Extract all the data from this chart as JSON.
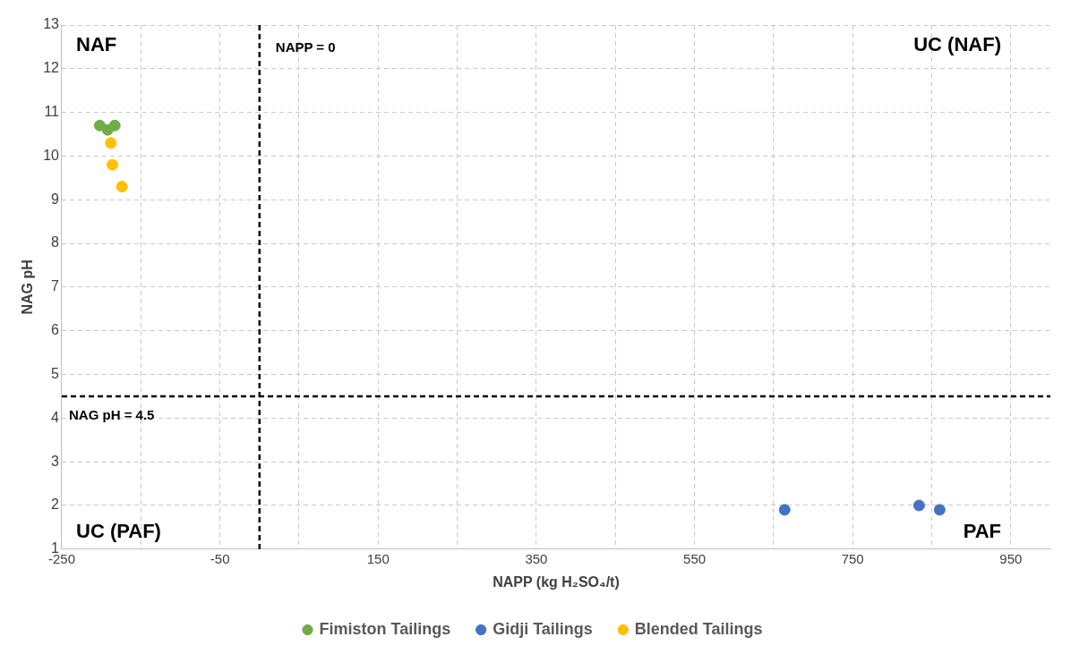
{
  "chart_data": {
    "type": "scatter",
    "xlabel": "NAPP (kg H₂SO₄/t)",
    "ylabel": "NAG pH",
    "xlim": [
      -250,
      1000
    ],
    "xticks": [
      -250,
      {
        "value": -150,
        "label": null
      },
      -50,
      {
        "value": 50,
        "label": null
      },
      150,
      {
        "value": 250,
        "label": null
      },
      350,
      {
        "value": 450,
        "label": null
      },
      550,
      {
        "value": 650,
        "label": null
      },
      750,
      {
        "value": 850,
        "label": null
      },
      950
    ],
    "ylim": [
      1,
      13
    ],
    "yticks": [
      1,
      2,
      3,
      4,
      5,
      6,
      7,
      8,
      9,
      10,
      11,
      12,
      13
    ],
    "grid": true,
    "legend": "bottom",
    "marker": "circle",
    "series": [
      {
        "name": "Fimiston Tailings",
        "color": "#70ad47",
        "x": [
          -202,
          -192,
          -183
        ],
        "values": [
          10.7,
          10.6,
          10.7
        ]
      },
      {
        "name": "Gidji Tailings",
        "color": "#4472c4",
        "x": [
          664,
          834,
          860
        ],
        "values": [
          1.9,
          2.0,
          1.9
        ]
      },
      {
        "name": "Blended Tailings",
        "color": "#ffc000",
        "x": [
          -188,
          -186,
          -174
        ],
        "values": [
          10.3,
          9.8,
          9.3
        ]
      }
    ],
    "ref_lines": [
      {
        "axis": "x",
        "value": 0,
        "label": "NAPP = 0",
        "line_style": "dashed",
        "color": "#000000"
      },
      {
        "axis": "y",
        "value": 4.5,
        "label": "NAG pH = 4.5",
        "line_style": "dashed",
        "color": "#000000"
      }
    ],
    "annotations": [
      "NAF",
      "UC (NAF)",
      "UC (PAF)",
      "PAF"
    ]
  }
}
